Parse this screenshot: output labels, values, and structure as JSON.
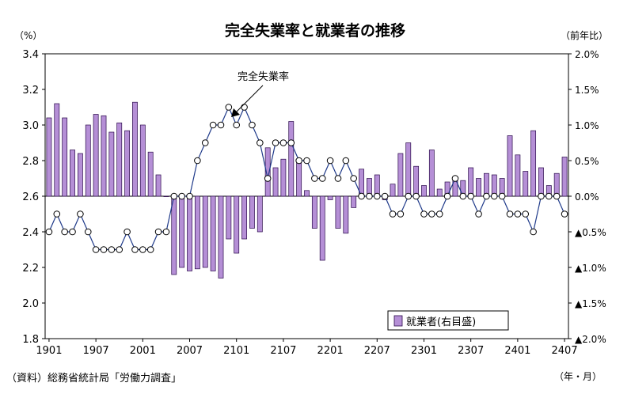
{
  "chart_data": {
    "type": "bar+line",
    "title": "完全失業率と就業者の推移",
    "left_axis_unit": "（%）",
    "right_axis_unit": "（前年比）",
    "x_axis_unit": "（年・月）",
    "source": "（資料）総務省統計局「労働力調査」",
    "annotation": "完全失業率",
    "left_axis": {
      "min": 1.8,
      "max": 3.4,
      "ticks": [
        "1.8",
        "2.0",
        "2.2",
        "2.4",
        "2.6",
        "2.8",
        "3.0",
        "3.2",
        "3.4"
      ]
    },
    "right_axis": {
      "min": -2.0,
      "max": 2.0,
      "ticks": [
        "▲2.0%",
        "▲1.5%",
        "▲1.0%",
        "▲0.5%",
        "0.0%",
        "0.5%",
        "1.0%",
        "1.5%",
        "2.0%"
      ]
    },
    "x_tick_labels": [
      "1901",
      "1907",
      "2001",
      "2007",
      "2101",
      "2107",
      "2201",
      "2207",
      "2301",
      "2307",
      "2401",
      "2407"
    ],
    "x_categories_start": "1901",
    "x_categories_count": 67,
    "legend": [
      {
        "label": "就業者(右目盛)",
        "color": "#b58fd6"
      }
    ],
    "series": [
      {
        "name": "就業者(右目盛)",
        "axis": "right",
        "type": "bar",
        "color": "#b58fd6",
        "values": [
          1.1,
          1.3,
          1.1,
          0.65,
          0.6,
          1.0,
          1.15,
          1.13,
          0.9,
          1.03,
          0.92,
          1.32,
          1.0,
          0.62,
          0.3,
          0.0,
          -1.1,
          -1.0,
          -1.05,
          -1.02,
          -1.0,
          -1.05,
          -1.15,
          -0.6,
          -0.8,
          -0.6,
          -0.45,
          -0.5,
          0.68,
          0.4,
          0.52,
          1.05,
          0.5,
          0.08,
          -0.45,
          -0.9,
          -0.05,
          -0.45,
          -0.52,
          -0.16,
          0.38,
          0.25,
          0.3,
          -0.05,
          0.17,
          0.6,
          0.75,
          0.42,
          0.15,
          0.65,
          0.1,
          0.2,
          0.22,
          0.22,
          0.4,
          0.25,
          0.32,
          0.3,
          0.25,
          0.85,
          0.58,
          0.35,
          0.92,
          0.4,
          0.15,
          0.32,
          0.55
        ]
      },
      {
        "name": "完全失業率",
        "axis": "left",
        "type": "line",
        "color": "#1f3a8a",
        "values": [
          2.4,
          2.5,
          2.4,
          2.4,
          2.5,
          2.4,
          2.3,
          2.3,
          2.3,
          2.3,
          2.4,
          2.3,
          2.3,
          2.3,
          2.4,
          2.4,
          2.6,
          2.6,
          2.6,
          2.8,
          2.9,
          3.0,
          3.0,
          3.1,
          3.0,
          3.1,
          3.0,
          2.9,
          2.7,
          2.9,
          2.9,
          2.9,
          2.8,
          2.8,
          2.7,
          2.7,
          2.8,
          2.7,
          2.8,
          2.7,
          2.6,
          2.6,
          2.6,
          2.6,
          2.5,
          2.5,
          2.6,
          2.6,
          2.5,
          2.5,
          2.5,
          2.6,
          2.7,
          2.6,
          2.6,
          2.5,
          2.6,
          2.6,
          2.6,
          2.5,
          2.5,
          2.5,
          2.4,
          2.6,
          2.6,
          2.6,
          2.5
        ]
      }
    ]
  }
}
